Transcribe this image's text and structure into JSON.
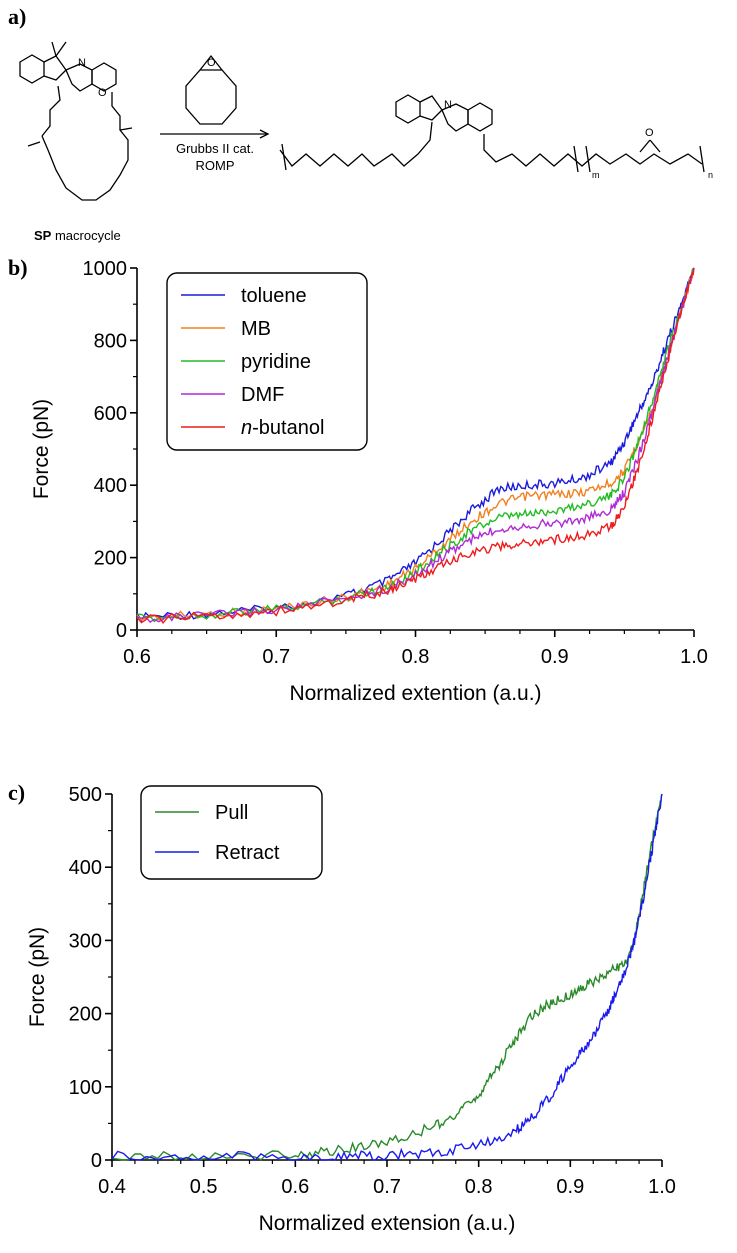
{
  "panels": {
    "a": "a)",
    "b": "b)",
    "c": "c)"
  },
  "scheme": {
    "reactant_bold": "SP",
    "reactant_rest": " macrocycle",
    "condition_1": "Grubbs II cat.",
    "condition_2": "ROMP",
    "atom_N": "N",
    "atom_O": "O",
    "sub_m": "m",
    "sub_n": "n"
  },
  "chart_data": [
    {
      "type": "line",
      "panel": "b",
      "title": "",
      "xlabel": "Normalized extention (a.u.)",
      "ylabel": "Force (pN)",
      "xlim": [
        0.6,
        1.0
      ],
      "ylim": [
        0,
        1000
      ],
      "xticks": [
        "0.6",
        "0.7",
        "0.8",
        "0.9",
        "1.0"
      ],
      "yticks": [
        "0",
        "200",
        "400",
        "600",
        "800",
        "1000"
      ],
      "legend_position": "top-left",
      "grid": false,
      "series": [
        {
          "name": "toluene",
          "color": "#1a1adb",
          "x": [
            0.6,
            0.65,
            0.7,
            0.75,
            0.78,
            0.8,
            0.82,
            0.84,
            0.86,
            0.88,
            0.9,
            0.92,
            0.94,
            0.95,
            0.96,
            0.97,
            0.98,
            0.99,
            1.0
          ],
          "y": [
            35,
            45,
            60,
            95,
            135,
            185,
            255,
            330,
            390,
            400,
            405,
            420,
            460,
            520,
            600,
            680,
            790,
            890,
            1000
          ]
        },
        {
          "name": "MB",
          "color": "#f28020",
          "x": [
            0.6,
            0.65,
            0.7,
            0.75,
            0.78,
            0.8,
            0.82,
            0.84,
            0.86,
            0.88,
            0.9,
            0.92,
            0.94,
            0.95,
            0.96,
            0.97,
            0.98,
            0.99,
            1.0
          ],
          "y": [
            33,
            43,
            58,
            90,
            125,
            170,
            235,
            300,
            350,
            370,
            375,
            380,
            405,
            440,
            520,
            610,
            740,
            870,
            1000
          ]
        },
        {
          "name": "pyridine",
          "color": "#22bb22",
          "x": [
            0.6,
            0.65,
            0.7,
            0.75,
            0.78,
            0.8,
            0.82,
            0.84,
            0.86,
            0.88,
            0.9,
            0.92,
            0.94,
            0.95,
            0.96,
            0.97,
            0.98,
            0.99,
            1.0
          ],
          "y": [
            32,
            42,
            57,
            88,
            120,
            160,
            220,
            275,
            310,
            320,
            330,
            345,
            370,
            420,
            520,
            630,
            760,
            880,
            1000
          ]
        },
        {
          "name": "DMF",
          "color": "#b02ad6",
          "x": [
            0.6,
            0.65,
            0.7,
            0.75,
            0.78,
            0.8,
            0.82,
            0.84,
            0.86,
            0.88,
            0.9,
            0.92,
            0.94,
            0.95,
            0.96,
            0.97,
            0.98,
            0.99,
            1.0
          ],
          "y": [
            30,
            40,
            55,
            85,
            115,
            150,
            205,
            250,
            280,
            290,
            295,
            305,
            330,
            380,
            480,
            600,
            740,
            870,
            1000
          ]
        },
        {
          "name": "n-butanol",
          "color": "#ee1c1c",
          "x": [
            0.6,
            0.65,
            0.7,
            0.75,
            0.78,
            0.8,
            0.82,
            0.84,
            0.86,
            0.88,
            0.9,
            0.92,
            0.94,
            0.95,
            0.96,
            0.97,
            0.98,
            0.99,
            1.0
          ],
          "y": [
            28,
            38,
            52,
            80,
            108,
            140,
            180,
            215,
            230,
            240,
            250,
            260,
            285,
            340,
            450,
            580,
            730,
            870,
            1000
          ]
        }
      ]
    },
    {
      "type": "line",
      "panel": "c",
      "title": "",
      "xlabel": "Normalized extension (a.u.)",
      "ylabel": "Force (pN)",
      "xlim": [
        0.4,
        1.0
      ],
      "ylim": [
        0,
        500
      ],
      "xticks": [
        "0.4",
        "0.5",
        "0.6",
        "0.7",
        "0.8",
        "0.9",
        "1.0"
      ],
      "yticks": [
        "0",
        "100",
        "200",
        "300",
        "400",
        "500"
      ],
      "legend_position": "top-left",
      "grid": false,
      "series": [
        {
          "name": "Pull",
          "color": "#2a8a2a",
          "x": [
            0.4,
            0.5,
            0.6,
            0.65,
            0.7,
            0.75,
            0.78,
            0.8,
            0.82,
            0.84,
            0.86,
            0.88,
            0.9,
            0.92,
            0.94,
            0.96,
            0.97,
            0.98,
            0.99,
            1.0
          ],
          "y": [
            5,
            5,
            8,
            14,
            25,
            45,
            65,
            90,
            125,
            165,
            200,
            215,
            225,
            240,
            255,
            270,
            300,
            370,
            440,
            500
          ]
        },
        {
          "name": "Retract",
          "color": "#1a1af0",
          "x": [
            0.4,
            0.5,
            0.6,
            0.65,
            0.7,
            0.75,
            0.8,
            0.84,
            0.86,
            0.88,
            0.9,
            0.92,
            0.94,
            0.95,
            0.96,
            0.97,
            0.98,
            0.99,
            1.0
          ],
          "y": [
            5,
            5,
            4,
            5,
            6,
            10,
            20,
            40,
            60,
            90,
            130,
            160,
            200,
            230,
            260,
            300,
            360,
            430,
            500
          ]
        }
      ]
    }
  ]
}
